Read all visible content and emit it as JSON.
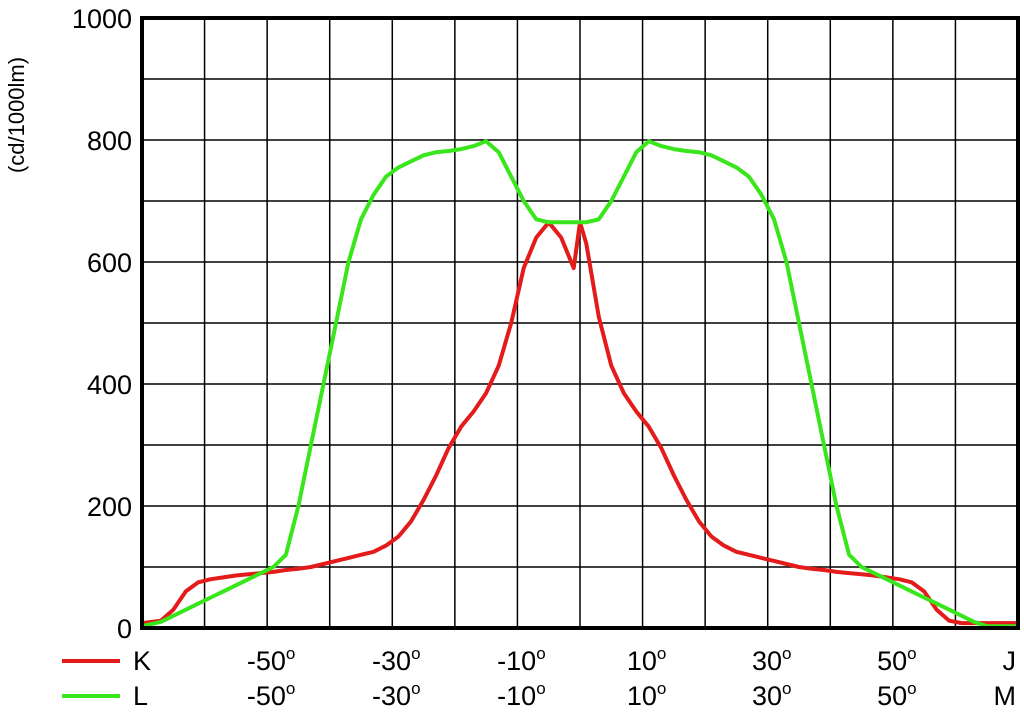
{
  "chart_data": {
    "type": "line",
    "title": "",
    "ylabel": "(cd/1000lm)",
    "xlim": [
      -70,
      70
    ],
    "ylim": [
      0,
      1000
    ],
    "grid": true,
    "y_ticks": [
      "0",
      "200",
      "400",
      "600",
      "800",
      "1000"
    ],
    "x_rows": [
      {
        "legend": "K",
        "ticks": [
          "-50",
          "-30",
          "-10",
          "10",
          "30",
          "50"
        ],
        "end_label": "J"
      },
      {
        "legend": "L",
        "ticks": [
          "-50",
          "-30",
          "-10",
          "10",
          "30",
          "50"
        ],
        "end_label": "M"
      }
    ],
    "degree_symbol": "o",
    "series": [
      {
        "name": "K",
        "color": "#e31b1b",
        "x": [
          -70,
          -67,
          -65,
          -63,
          -61,
          -59,
          -57,
          -55,
          -53,
          -51,
          -49,
          -47,
          -45,
          -43,
          -41,
          -39,
          -37,
          -35,
          -33,
          -31,
          -29,
          -27,
          -25,
          -23,
          -21,
          -19,
          -17,
          -15,
          -13,
          -11,
          -9,
          -7,
          -5,
          -3,
          -1,
          0,
          1,
          3,
          5,
          7,
          9,
          11,
          13,
          15,
          17,
          19,
          21,
          23,
          25,
          27,
          29,
          31,
          33,
          35,
          37,
          39,
          41,
          43,
          45,
          47,
          49,
          51,
          53,
          55,
          57,
          59,
          61,
          63,
          65,
          67,
          70
        ],
        "y": [
          8,
          12,
          30,
          60,
          75,
          80,
          83,
          86,
          88,
          90,
          92,
          95,
          97,
          100,
          105,
          110,
          115,
          120,
          125,
          135,
          150,
          175,
          210,
          250,
          295,
          330,
          355,
          385,
          430,
          500,
          590,
          640,
          665,
          640,
          590,
          665,
          630,
          510,
          430,
          385,
          355,
          330,
          295,
          250,
          210,
          175,
          150,
          135,
          125,
          120,
          115,
          110,
          105,
          100,
          97,
          95,
          92,
          90,
          88,
          86,
          83,
          80,
          75,
          60,
          30,
          12,
          8,
          8,
          8,
          8,
          8
        ]
      },
      {
        "name": "L",
        "color": "#39e61c",
        "x": [
          -70,
          -67,
          -65,
          -63,
          -61,
          -59,
          -57,
          -55,
          -53,
          -51,
          -49,
          -47,
          -45,
          -43,
          -41,
          -39,
          -37,
          -35,
          -33,
          -31,
          -29,
          -27,
          -25,
          -23,
          -21,
          -19,
          -17,
          -15,
          -13,
          -11,
          -9,
          -7,
          -5,
          -3,
          -1,
          0,
          1,
          3,
          5,
          7,
          9,
          11,
          13,
          15,
          17,
          19,
          21,
          23,
          25,
          27,
          29,
          31,
          33,
          35,
          37,
          39,
          41,
          43,
          45,
          47,
          49,
          51,
          53,
          55,
          57,
          59,
          61,
          63,
          65,
          67,
          70
        ],
        "y": [
          3,
          10,
          20,
          30,
          40,
          50,
          60,
          70,
          80,
          90,
          100,
          120,
          200,
          300,
          400,
          500,
          600,
          670,
          710,
          740,
          755,
          765,
          775,
          780,
          782,
          785,
          790,
          798,
          780,
          740,
          700,
          670,
          665,
          665,
          665,
          665,
          665,
          670,
          700,
          740,
          780,
          798,
          790,
          785,
          782,
          780,
          775,
          765,
          755,
          740,
          710,
          670,
          600,
          500,
          400,
          300,
          200,
          120,
          100,
          90,
          80,
          70,
          60,
          50,
          40,
          30,
          20,
          10,
          3,
          3,
          3
        ]
      }
    ]
  }
}
